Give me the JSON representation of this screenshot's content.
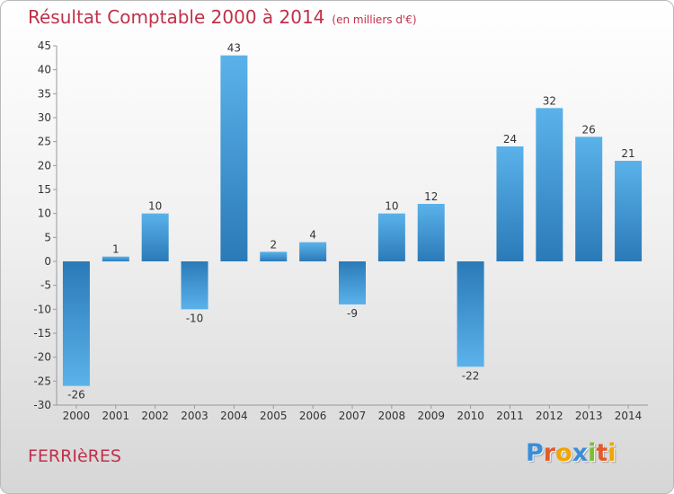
{
  "title": "Résultat Comptable 2000 à 2014",
  "subtitle": "(en milliers d'€)",
  "commune": "FERRIèRES",
  "logo": {
    "text": "Proxiti",
    "letters": [
      {
        "ch": "P",
        "color": "#3a8ed8"
      },
      {
        "ch": "r",
        "color": "#e45a2a"
      },
      {
        "ch": "o",
        "color": "#f2a400"
      },
      {
        "ch": "x",
        "color": "#3a8ed8"
      },
      {
        "ch": "i",
        "color": "#7cbf2a"
      },
      {
        "ch": "t",
        "color": "#e45a2a"
      },
      {
        "ch": "i",
        "color": "#f2a400"
      }
    ]
  },
  "chart_data": {
    "type": "bar",
    "title": "Résultat Comptable 2000 à 2014",
    "subtitle": "(en milliers d'€)",
    "categories": [
      "2000",
      "2001",
      "2002",
      "2003",
      "2004",
      "2005",
      "2006",
      "2007",
      "2008",
      "2009",
      "2010",
      "2011",
      "2012",
      "2013",
      "2014"
    ],
    "values": [
      -26,
      1,
      10,
      -10,
      43,
      2,
      4,
      -9,
      10,
      12,
      -22,
      24,
      32,
      26,
      21
    ],
    "ylim": [
      -30,
      45
    ],
    "yticks": [
      45,
      40,
      35,
      30,
      25,
      20,
      15,
      10,
      5,
      0,
      -5,
      -10,
      -15,
      -20,
      -25,
      -30
    ],
    "grid": false,
    "colors": {
      "bar_light": "#5bb2ea",
      "bar_dark": "#2a7ab8",
      "text": "#333333",
      "axis": "#999999"
    }
  }
}
